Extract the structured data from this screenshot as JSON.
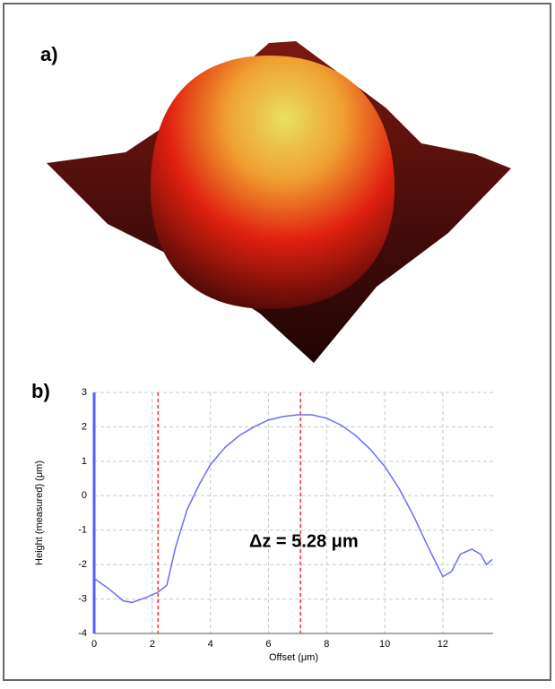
{
  "panel_labels": [
    "a)",
    "b)"
  ],
  "chart_data": {
    "type": "line",
    "xlabel": "Offset (μm)",
    "ylabel": "Height (measured) (μm)",
    "annotation": "Δz = 5.28 μm",
    "x": [
      0,
      0.5,
      1.0,
      1.3,
      1.8,
      2.2,
      2.5,
      2.8,
      3.2,
      3.6,
      4.0,
      4.5,
      5.0,
      5.5,
      6.0,
      6.5,
      7.0,
      7.5,
      8.0,
      8.5,
      9.0,
      9.5,
      10.0,
      10.5,
      11.0,
      11.5,
      12.0,
      12.3,
      12.6,
      13.0,
      13.3,
      13.5,
      13.7
    ],
    "series": [
      {
        "color": "#6b6bff",
        "values": [
          -2.4,
          -2.7,
          -3.05,
          -3.1,
          -2.95,
          -2.8,
          -2.6,
          -1.5,
          -0.4,
          0.3,
          0.9,
          1.4,
          1.75,
          2.0,
          2.2,
          2.3,
          2.35,
          2.35,
          2.25,
          2.05,
          1.75,
          1.35,
          0.85,
          0.2,
          -0.6,
          -1.5,
          -2.35,
          -2.2,
          -1.7,
          -1.55,
          -1.7,
          -2.0,
          -1.85
        ]
      }
    ],
    "markers": [
      2.2,
      7.1
    ],
    "marker_color": "#ff2a2a",
    "xlim": [
      0,
      13.73
    ],
    "ylim": [
      -4,
      3
    ],
    "xticks": [
      0,
      2,
      4,
      6,
      8,
      10,
      12
    ],
    "yticks": [
      -4,
      -3,
      -2,
      -1,
      0,
      1,
      2,
      3
    ],
    "grid": true
  }
}
